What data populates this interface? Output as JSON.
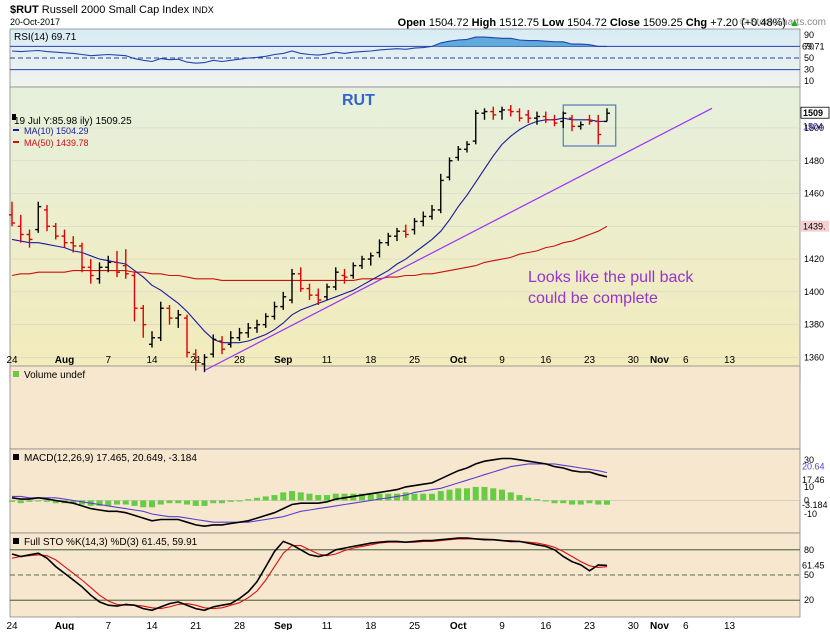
{
  "header": {
    "symbol": "$RUT",
    "name": "Russell 2000 Small Cap Index",
    "exchange": "INDX",
    "date": "20-Oct-2017",
    "open_label": "Open",
    "open": "1504.72",
    "high_label": "High",
    "high": "1512.75",
    "low_label": "Low",
    "low": "1504.72",
    "close_label": "Close",
    "close": "1509.25",
    "chg_label": "Chg",
    "chg": "+7.20 (+0.48%)",
    "chg_arrow": "▲",
    "logo": "© StockCharts.com"
  },
  "colors": {
    "price_bg_top": "#e6f0dc",
    "price_bg_bottom": "#f3ebba",
    "indicator_bg": "#f7e7cf",
    "ma10": "#1a1a9e",
    "ma50": "#cc1111",
    "trendline": "#9933ff",
    "annotation": "#9933cc",
    "rut_label": "#3366cc",
    "up_bar": "#000000",
    "down_bar": "#dd0000",
    "volume_hist": "#66cc44",
    "rsi_fill": "#4a9fd6"
  },
  "chart_data": {
    "type": "ohlc",
    "price": {
      "title": "RUT",
      "ylim": [
        1345,
        1525
      ],
      "y_ticks": [
        "1360",
        "1380",
        "1400",
        "1420",
        "1440",
        "1460",
        "1480",
        "1500"
      ],
      "last_labels": {
        "price": "1509",
        "ma10": "1504",
        "ma50": "1439."
      },
      "legend": [
        {
          "key": "price",
          "text": "19 Jul Y:85.98 ily) 1509.25"
        },
        {
          "key": "ma10",
          "text": "MA(10) 1504.29"
        },
        {
          "key": "ma50",
          "text": "MA(50) 1439.78"
        }
      ],
      "annotation": [
        "Looks like the pull back",
        "could be complete"
      ],
      "bars": [
        {
          "o": 1447,
          "h": 1455,
          "l": 1440,
          "c": 1442
        },
        {
          "o": 1440,
          "h": 1447,
          "l": 1430,
          "c": 1435
        },
        {
          "o": 1435,
          "h": 1438,
          "l": 1427,
          "c": 1432
        },
        {
          "o": 1438,
          "h": 1455,
          "l": 1436,
          "c": 1452
        },
        {
          "o": 1450,
          "h": 1453,
          "l": 1437,
          "c": 1440
        },
        {
          "o": 1440,
          "h": 1442,
          "l": 1432,
          "c": 1434
        },
        {
          "o": 1434,
          "h": 1438,
          "l": 1427,
          "c": 1430
        },
        {
          "o": 1430,
          "h": 1434,
          "l": 1424,
          "c": 1428
        },
        {
          "o": 1428,
          "h": 1430,
          "l": 1412,
          "c": 1415
        },
        {
          "o": 1415,
          "h": 1420,
          "l": 1405,
          "c": 1410
        },
        {
          "o": 1408,
          "h": 1418,
          "l": 1405,
          "c": 1415
        },
        {
          "o": 1415,
          "h": 1422,
          "l": 1412,
          "c": 1418
        },
        {
          "o": 1418,
          "h": 1425,
          "l": 1409,
          "c": 1412
        },
        {
          "o": 1416,
          "h": 1426,
          "l": 1408,
          "c": 1411
        },
        {
          "o": 1410,
          "h": 1412,
          "l": 1382,
          "c": 1390
        },
        {
          "o": 1390,
          "h": 1392,
          "l": 1372,
          "c": 1380
        },
        {
          "o": 1368,
          "h": 1376,
          "l": 1366,
          "c": 1372
        },
        {
          "o": 1372,
          "h": 1394,
          "l": 1370,
          "c": 1390
        },
        {
          "o": 1390,
          "h": 1392,
          "l": 1380,
          "c": 1384
        },
        {
          "o": 1384,
          "h": 1389,
          "l": 1378,
          "c": 1386
        },
        {
          "o": 1384,
          "h": 1386,
          "l": 1360,
          "c": 1363
        },
        {
          "o": 1362,
          "h": 1365,
          "l": 1352,
          "c": 1358
        },
        {
          "o": 1356,
          "h": 1362,
          "l": 1351,
          "c": 1360
        },
        {
          "o": 1362,
          "h": 1374,
          "l": 1360,
          "c": 1371
        },
        {
          "o": 1370,
          "h": 1373,
          "l": 1362,
          "c": 1365
        },
        {
          "o": 1368,
          "h": 1376,
          "l": 1366,
          "c": 1372
        },
        {
          "o": 1372,
          "h": 1378,
          "l": 1370,
          "c": 1375
        },
        {
          "o": 1375,
          "h": 1381,
          "l": 1372,
          "c": 1378
        },
        {
          "o": 1378,
          "h": 1383,
          "l": 1375,
          "c": 1380
        },
        {
          "o": 1380,
          "h": 1387,
          "l": 1378,
          "c": 1385
        },
        {
          "o": 1385,
          "h": 1394,
          "l": 1383,
          "c": 1391
        },
        {
          "o": 1391,
          "h": 1400,
          "l": 1389,
          "c": 1397
        },
        {
          "o": 1395,
          "h": 1414,
          "l": 1393,
          "c": 1411
        },
        {
          "o": 1411,
          "h": 1415,
          "l": 1400,
          "c": 1402
        },
        {
          "o": 1402,
          "h": 1405,
          "l": 1395,
          "c": 1398
        },
        {
          "o": 1398,
          "h": 1402,
          "l": 1392,
          "c": 1395
        },
        {
          "o": 1397,
          "h": 1405,
          "l": 1395,
          "c": 1403
        },
        {
          "o": 1403,
          "h": 1415,
          "l": 1401,
          "c": 1412
        },
        {
          "o": 1410,
          "h": 1414,
          "l": 1405,
          "c": 1409
        },
        {
          "o": 1410,
          "h": 1418,
          "l": 1408,
          "c": 1416
        },
        {
          "o": 1416,
          "h": 1422,
          "l": 1414,
          "c": 1420
        },
        {
          "o": 1420,
          "h": 1424,
          "l": 1416,
          "c": 1422
        },
        {
          "o": 1424,
          "h": 1432,
          "l": 1421,
          "c": 1430
        },
        {
          "o": 1430,
          "h": 1436,
          "l": 1428,
          "c": 1434
        },
        {
          "o": 1434,
          "h": 1439,
          "l": 1431,
          "c": 1437
        },
        {
          "o": 1437,
          "h": 1441,
          "l": 1433,
          "c": 1435
        },
        {
          "o": 1438,
          "h": 1445,
          "l": 1435,
          "c": 1443
        },
        {
          "o": 1443,
          "h": 1449,
          "l": 1440,
          "c": 1446
        },
        {
          "o": 1446,
          "h": 1453,
          "l": 1444,
          "c": 1450
        },
        {
          "o": 1450,
          "h": 1472,
          "l": 1448,
          "c": 1468
        },
        {
          "o": 1470,
          "h": 1482,
          "l": 1468,
          "c": 1480
        },
        {
          "o": 1482,
          "h": 1489,
          "l": 1480,
          "c": 1487
        },
        {
          "o": 1487,
          "h": 1492,
          "l": 1485,
          "c": 1490
        },
        {
          "o": 1492,
          "h": 1511,
          "l": 1490,
          "c": 1509
        },
        {
          "o": 1509,
          "h": 1512,
          "l": 1505,
          "c": 1510
        },
        {
          "o": 1510,
          "h": 1513,
          "l": 1505,
          "c": 1508
        },
        {
          "o": 1510,
          "h": 1513,
          "l": 1505,
          "c": 1511
        },
        {
          "o": 1511,
          "h": 1514,
          "l": 1507,
          "c": 1510
        },
        {
          "o": 1510,
          "h": 1512,
          "l": 1504,
          "c": 1506
        },
        {
          "o": 1508,
          "h": 1511,
          "l": 1503,
          "c": 1506
        },
        {
          "o": 1506,
          "h": 1510,
          "l": 1502,
          "c": 1507
        },
        {
          "o": 1507,
          "h": 1510,
          "l": 1503,
          "c": 1505
        },
        {
          "o": 1505,
          "h": 1508,
          "l": 1501,
          "c": 1503
        },
        {
          "o": 1504,
          "h": 1510,
          "l": 1500,
          "c": 1509
        },
        {
          "o": 1506,
          "h": 1508,
          "l": 1498,
          "c": 1501
        },
        {
          "o": 1501,
          "h": 1504,
          "l": 1499,
          "c": 1502
        },
        {
          "o": 1505,
          "h": 1508,
          "l": 1502,
          "c": 1504
        },
        {
          "o": 1504,
          "h": 1508,
          "l": 1490,
          "c": 1496
        },
        {
          "o": 1504,
          "h": 1512,
          "l": 1504,
          "c": 1509
        }
      ],
      "ma10": [
        1432,
        1431,
        1430,
        1430,
        1429,
        1428,
        1427,
        1425,
        1424,
        1422,
        1420,
        1419,
        1418,
        1417,
        1413,
        1409,
        1404,
        1401,
        1397,
        1393,
        1388,
        1382,
        1376,
        1371,
        1369,
        1369,
        1369,
        1370,
        1372,
        1374,
        1377,
        1381,
        1386,
        1389,
        1391,
        1393,
        1395,
        1397,
        1399,
        1401,
        1404,
        1407,
        1410,
        1413,
        1417,
        1420,
        1424,
        1428,
        1432,
        1437,
        1444,
        1452,
        1459,
        1467,
        1475,
        1483,
        1490,
        1495,
        1499,
        1502,
        1504,
        1505,
        1505,
        1506,
        1505,
        1505,
        1505,
        1504,
        1504
      ],
      "ma50": [
        1410,
        1411,
        1411,
        1412,
        1412,
        1412,
        1412,
        1413,
        1413,
        1413,
        1413,
        1413,
        1413,
        1413,
        1412,
        1412,
        1411,
        1411,
        1410,
        1410,
        1409,
        1408,
        1408,
        1408,
        1407,
        1407,
        1407,
        1407,
        1407,
        1407,
        1407,
        1407,
        1407,
        1407,
        1407,
        1407,
        1407,
        1407,
        1407,
        1407,
        1408,
        1408,
        1408,
        1409,
        1409,
        1410,
        1410,
        1411,
        1411,
        1412,
        1413,
        1414,
        1415,
        1416,
        1418,
        1419,
        1420,
        1421,
        1423,
        1424,
        1425,
        1427,
        1428,
        1430,
        1431,
        1433,
        1435,
        1437,
        1440
      ],
      "trendline": {
        "from": {
          "bar": 22,
          "value": 1352
        },
        "to": {
          "bar": 80,
          "value": 1512
        }
      },
      "box": {
        "from_bar": 63,
        "to_bar": 69,
        "top": 1514,
        "bottom": 1489
      }
    },
    "x_labels": [
      {
        "bar": 0,
        "text": "24"
      },
      {
        "bar": 6,
        "text": "Aug"
      },
      {
        "bar": 11,
        "text": "7"
      },
      {
        "bar": 16,
        "text": "14"
      },
      {
        "bar": 21,
        "text": "21"
      },
      {
        "bar": 26,
        "text": "28"
      },
      {
        "bar": 31,
        "text": "Sep"
      },
      {
        "bar": 36,
        "text": "11"
      },
      {
        "bar": 41,
        "text": "18"
      },
      {
        "bar": 46,
        "text": "25"
      },
      {
        "bar": 51,
        "text": "Oct"
      },
      {
        "bar": 56,
        "text": "9"
      },
      {
        "bar": 61,
        "text": "16"
      },
      {
        "bar": 66,
        "text": "23"
      },
      {
        "bar": 71,
        "text": "30"
      },
      {
        "bar": 74,
        "text": "Nov"
      },
      {
        "bar": 77,
        "text": "6"
      },
      {
        "bar": 82,
        "text": "13"
      }
    ],
    "rsi": {
      "label": "RSI(14) 69.71",
      "ylim": [
        0,
        100
      ],
      "ticks": [
        "90",
        "70",
        "50",
        "30",
        "10"
      ],
      "last_label": "69.71",
      "values": [
        62,
        61,
        62,
        63,
        61,
        60,
        59,
        58,
        56,
        54,
        55,
        56,
        55,
        54,
        49,
        46,
        44,
        49,
        47,
        48,
        43,
        41,
        42,
        46,
        44,
        46,
        48,
        50,
        51,
        53,
        56,
        58,
        62,
        58,
        56,
        55,
        57,
        60,
        58,
        60,
        61,
        62,
        64,
        65,
        66,
        65,
        67,
        68,
        70,
        76,
        79,
        81,
        82,
        86,
        86,
        85,
        84,
        84,
        81,
        80,
        80,
        79,
        78,
        78,
        74,
        74,
        73,
        70,
        70
      ]
    },
    "volume": {
      "label": "Volume undef"
    },
    "macd": {
      "label": "MACD(12,26,9) 17.465, 20.649, -3.184",
      "ylim": [
        -24,
        38
      ],
      "ticks": [
        "30",
        "10",
        "0",
        "-10"
      ],
      "last_labels": {
        "signal": "20.64",
        "macd": "17.46",
        "hist": "-3.184"
      },
      "macd_values": [
        2,
        1,
        1,
        2,
        1,
        0,
        -1,
        -2,
        -4,
        -6,
        -7,
        -8,
        -8,
        -9,
        -11,
        -13,
        -15,
        -14,
        -14,
        -14,
        -16,
        -18,
        -19,
        -18,
        -18,
        -17,
        -16,
        -15,
        -13,
        -11,
        -9,
        -6,
        -3,
        -2,
        -2,
        -2,
        -1,
        1,
        2,
        3,
        4,
        5,
        6,
        7,
        8,
        10,
        11,
        12,
        13,
        16,
        19,
        22,
        24,
        27,
        29,
        30,
        31,
        31,
        30,
        29,
        28,
        27,
        25,
        24,
        22,
        21,
        21,
        19,
        17.5
      ],
      "signal_values": [
        3,
        3,
        2,
        2,
        2,
        2,
        1,
        0,
        -1,
        -2,
        -3,
        -4,
        -5,
        -6,
        -7,
        -8,
        -10,
        -11,
        -12,
        -12,
        -13,
        -14,
        -15,
        -16,
        -16,
        -16,
        -16,
        -16,
        -15,
        -14,
        -13,
        -12,
        -10,
        -8,
        -7,
        -6,
        -5,
        -4,
        -3,
        -2,
        -1,
        0,
        1,
        2,
        3,
        4,
        6,
        7,
        8,
        9,
        11,
        13,
        15,
        17,
        19,
        21,
        23,
        25,
        26,
        27,
        27,
        27,
        27,
        26,
        25,
        24,
        23,
        22,
        20.6
      ]
    },
    "sto": {
      "label": "Full STO %K(14,3) %D(3) 61.45, 59.91",
      "ylim": [
        0,
        100
      ],
      "ticks": [
        "80",
        "50",
        "20"
      ],
      "last_label": "61.45",
      "k_values": [
        75,
        72,
        74,
        76,
        70,
        60,
        52,
        44,
        36,
        26,
        18,
        14,
        13,
        15,
        14,
        10,
        8,
        12,
        16,
        18,
        14,
        10,
        8,
        12,
        14,
        16,
        22,
        30,
        42,
        60,
        78,
        90,
        86,
        80,
        74,
        72,
        74,
        80,
        82,
        84,
        86,
        88,
        89,
        90,
        90,
        89,
        90,
        91,
        91,
        92,
        93,
        94,
        94,
        93,
        92,
        92,
        91,
        90,
        90,
        88,
        86,
        84,
        80,
        72,
        66,
        62,
        55,
        62,
        61.45
      ],
      "d_values": [
        70,
        72,
        73,
        74,
        73,
        68,
        60,
        52,
        44,
        35,
        26,
        19,
        15,
        14,
        14,
        13,
        11,
        10,
        12,
        15,
        16,
        14,
        11,
        10,
        11,
        14,
        17,
        23,
        31,
        44,
        60,
        76,
        85,
        85,
        80,
        75,
        73,
        75,
        79,
        82,
        84,
        86,
        88,
        89,
        89,
        89,
        89,
        90,
        90,
        91,
        92,
        93,
        93,
        93,
        93,
        92,
        91,
        91,
        90,
        89,
        88,
        86,
        83,
        78,
        72,
        66,
        61,
        59,
        59.91
      ]
    }
  }
}
